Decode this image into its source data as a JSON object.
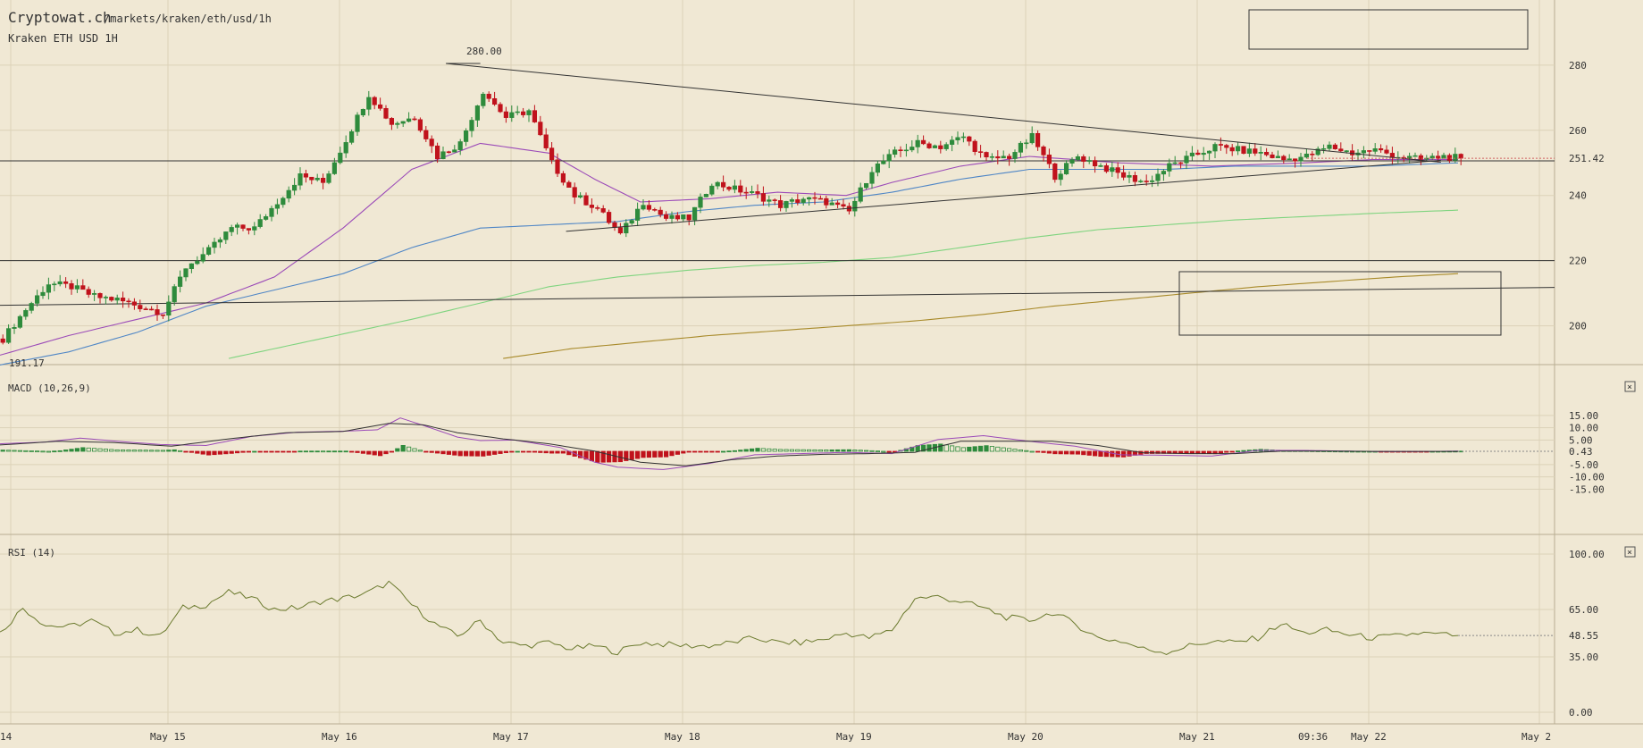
{
  "header": {
    "site": "Cryptowat.ch",
    "path": "/markets/kraken/eth/usd/1h",
    "market": "Kraken ETH USD 1H"
  },
  "colors": {
    "background": "#f0e8d4",
    "grid": "#dcd2b8",
    "up": "#2e8b3c",
    "down": "#c0121c",
    "ma_purple": "#9b4ab8",
    "ma_blue": "#4f86c6",
    "ma_green": "#7fd47f",
    "ma_olive": "#a88a2a",
    "rsi_line": "#6b7a2e",
    "trendline": "#333333"
  },
  "x_axis": {
    "labels": [
      "14",
      "May 15",
      "May 16",
      "May 17",
      "May 18",
      "May 19",
      "May 20",
      "May 21",
      "May 22",
      "May 2"
    ],
    "current_time": "09:36"
  },
  "chart_data": [
    {
      "type": "candlestick",
      "title": "Kraken ETH USD 1H",
      "ylim": [
        190,
        290
      ],
      "yticks": [
        "280",
        "260",
        "240",
        "220",
        "200"
      ],
      "annotations": {
        "high": "280.00",
        "low": "191.17",
        "last": "251.42"
      },
      "last_price": 251.42,
      "anchors": {
        "hours": [
          0,
          4,
          8,
          12,
          16,
          20,
          24,
          28,
          32,
          36,
          40,
          44,
          48,
          52,
          56,
          60,
          64,
          68,
          72,
          76,
          80,
          84,
          88,
          92,
          96,
          100,
          104,
          108,
          112,
          116,
          120,
          124,
          128,
          132,
          136,
          140,
          144,
          148,
          152,
          156,
          160,
          164,
          168,
          172,
          176,
          180,
          184,
          188,
          192,
          196,
          200,
          204,
          208,
          212,
          216,
          220,
          224,
          228,
          232,
          236,
          240,
          244,
          248,
          252,
          255
        ],
        "close": [
          196,
          205,
          213,
          212,
          209,
          208,
          206,
          204,
          218,
          223,
          230,
          230,
          238,
          246,
          244,
          257,
          271,
          262,
          264,
          252,
          256,
          272,
          264,
          266,
          250,
          240,
          236,
          228,
          238,
          233,
          233,
          244,
          242,
          240,
          237,
          239,
          238,
          235,
          248,
          253,
          256,
          255,
          258,
          251,
          252,
          258,
          246,
          252,
          249,
          246,
          244,
          249,
          252,
          255,
          254,
          253,
          251,
          252,
          255,
          253,
          254,
          252,
          251,
          252,
          251.4
        ]
      },
      "moving_averages": [
        {
          "color": "purple",
          "hours": [
            0,
            12,
            24,
            36,
            48,
            60,
            72,
            84,
            96,
            104,
            112,
            124,
            136,
            148,
            156,
            168,
            180,
            196,
            212,
            228,
            240,
            255
          ],
          "values": [
            191,
            197,
            202,
            207,
            215,
            230,
            248,
            256,
            253,
            245,
            238,
            239,
            241,
            240,
            244,
            249,
            252,
            250,
            249,
            250,
            251,
            251
          ]
        },
        {
          "color": "blue",
          "hours": [
            0,
            12,
            24,
            36,
            48,
            60,
            72,
            84,
            96,
            108,
            120,
            132,
            144,
            156,
            168,
            180,
            192,
            204,
            216,
            228,
            240,
            255
          ],
          "values": [
            188,
            192,
            198,
            206,
            211,
            216,
            224,
            230,
            231,
            232,
            235,
            237,
            238,
            241,
            245,
            248,
            248,
            248,
            249,
            249,
            249,
            250
          ]
        },
        {
          "color": "green",
          "hours": [
            40,
            56,
            72,
            84,
            96,
            108,
            120,
            132,
            144,
            156,
            168,
            180,
            192,
            204,
            216,
            228,
            240,
            255
          ],
          "values": [
            190,
            196,
            202,
            207,
            212,
            215,
            217,
            218.5,
            219.5,
            221,
            224,
            227,
            229.5,
            231,
            232.5,
            233.5,
            234.5,
            235.5
          ]
        },
        {
          "color": "olive",
          "hours": [
            88,
            100,
            112,
            124,
            136,
            148,
            160,
            172,
            184,
            196,
            208,
            220,
            232,
            244,
            255
          ],
          "values": [
            190,
            193,
            195,
            197,
            198.5,
            200,
            201.5,
            203.5,
            206,
            208,
            210,
            212,
            213.5,
            215,
            216
          ]
        }
      ]
    },
    {
      "type": "bar",
      "title": "MACD (10,26,9)",
      "ylim": [
        -16,
        16
      ],
      "yticks": [
        "15.00",
        "10.00",
        "5.00",
        "0.43",
        "-5.00",
        "-10.00",
        "-15.00"
      ],
      "last": "0.43",
      "macd": {
        "hours": [
          0,
          8,
          14,
          20,
          28,
          36,
          44,
          52,
          60,
          66,
          70,
          74,
          80,
          84,
          90,
          98,
          104,
          108,
          116,
          124,
          132,
          140,
          148,
          156,
          164,
          172,
          180,
          188,
          196,
          204,
          212,
          220,
          228,
          236,
          244,
          255
        ],
        "values": [
          3.5,
          4.2,
          5.8,
          4.6,
          3.2,
          2.8,
          6.5,
          8.2,
          8.6,
          9.2,
          14,
          11,
          6.2,
          4.8,
          5,
          2,
          -4,
          -6,
          -7,
          -4.5,
          -1,
          -0.5,
          0,
          -0.5,
          5.2,
          6.8,
          4.5,
          2.5,
          -1,
          -1.2,
          -1.5,
          0.8,
          0.8,
          0.5,
          0.3,
          0.5
        ]
      },
      "signal": {
        "hours": [
          0,
          10,
          20,
          30,
          40,
          50,
          60,
          68,
          74,
          80,
          88,
          96,
          104,
          112,
          120,
          128,
          136,
          144,
          152,
          160,
          168,
          176,
          184,
          192,
          200,
          208,
          216,
          224,
          232,
          240,
          255
        ],
        "values": [
          3,
          4.5,
          4,
          2.5,
          5.5,
          8,
          8.5,
          11.8,
          11.2,
          8,
          5.5,
          3.5,
          0.5,
          -4,
          -5.5,
          -3,
          -1.5,
          -0.8,
          -0.5,
          0,
          4.5,
          4.5,
          4.5,
          2.8,
          -0.2,
          -0.5,
          -0.5,
          0.5,
          0.5,
          0.4,
          0.4
        ]
      }
    },
    {
      "type": "line",
      "title": "RSI (14)",
      "ylim": [
        0,
        100
      ],
      "yticks": [
        "100.00",
        "65.00",
        "48.55",
        "35.00",
        "0.00"
      ],
      "last": "48.55",
      "hours": [
        0,
        4,
        8,
        12,
        16,
        20,
        24,
        28,
        32,
        36,
        40,
        44,
        48,
        52,
        56,
        60,
        64,
        68,
        72,
        76,
        80,
        84,
        88,
        92,
        96,
        100,
        104,
        108,
        112,
        116,
        120,
        124,
        128,
        132,
        136,
        140,
        144,
        148,
        152,
        156,
        160,
        164,
        168,
        172,
        176,
        180,
        184,
        188,
        192,
        196,
        200,
        204,
        208,
        212,
        216,
        220,
        224,
        228,
        232,
        236,
        240,
        244,
        248,
        252,
        255
      ],
      "values": [
        50,
        66,
        55,
        54,
        58,
        50,
        52,
        48,
        66,
        68,
        76,
        72,
        65,
        66,
        70,
        72,
        75,
        82,
        68,
        56,
        48,
        58,
        44,
        42,
        44,
        40,
        42,
        38,
        44,
        43,
        42,
        42,
        44,
        47,
        44,
        44,
        46,
        50,
        47,
        52,
        72,
        73,
        70,
        66,
        60,
        58,
        63,
        56,
        47,
        45,
        40,
        38,
        42,
        45,
        44,
        47,
        56,
        50,
        52,
        49,
        47,
        48,
        50,
        49,
        48.55
      ]
    }
  ]
}
